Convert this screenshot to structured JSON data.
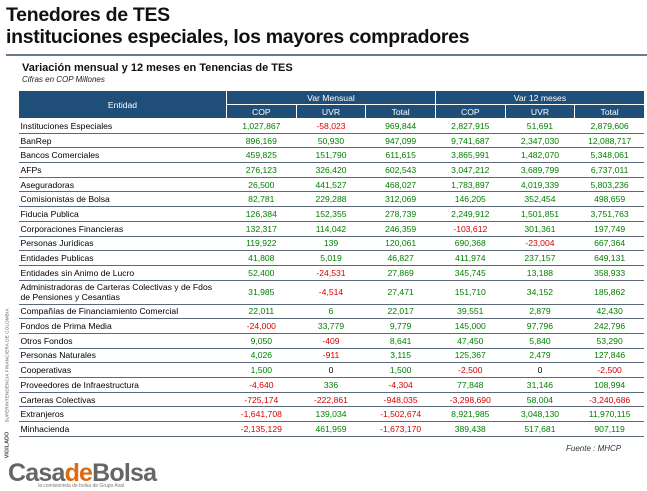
{
  "title": {
    "line1": "Tenedores de TES",
    "line2": "instituciones especiales, los mayores compradores"
  },
  "subtitle": "Variación mensual y 12 meses en Tenencias de TES",
  "units": "Cifras en COP Millones",
  "side_label": "SUPERINTENDENCIA FINANCIERA DE COLOMBIA",
  "side_label2": "VIGILADO",
  "table": {
    "entity_header": "Entidad",
    "group_headers": [
      "Var Mensual",
      "Var 12 meses"
    ],
    "sub_headers": [
      "COP",
      "UVR",
      "Total",
      "COP",
      "UVR",
      "Total"
    ],
    "rows": [
      {
        "entity": "Instituciones Especiales",
        "values": [
          "1,027,867",
          "-58,023",
          "969,844",
          "2,827,915",
          "51,691",
          "2,879,606"
        ]
      },
      {
        "entity": "BanRep",
        "values": [
          "896,169",
          "50,930",
          "947,099",
          "9,741,687",
          "2,347,030",
          "12,088,717"
        ]
      },
      {
        "entity": "Bancos Comerciales",
        "values": [
          "459,825",
          "151,790",
          "611,615",
          "3,865,991",
          "1,482,070",
          "5,348,061"
        ]
      },
      {
        "entity": "AFPs",
        "values": [
          "276,123",
          "326,420",
          "602,543",
          "3,047,212",
          "3,689,799",
          "6,737,011"
        ]
      },
      {
        "entity": "Aseguradoras",
        "values": [
          "26,500",
          "441,527",
          "468,027",
          "1,783,897",
          "4,019,339",
          "5,803,236"
        ]
      },
      {
        "entity": "Comisionistas de Bolsa",
        "values": [
          "82,781",
          "229,288",
          "312,069",
          "146,205",
          "352,454",
          "498,659"
        ]
      },
      {
        "entity": "Fiducia Publica",
        "values": [
          "126,384",
          "152,355",
          "278,739",
          "2,249,912",
          "1,501,851",
          "3,751,763"
        ]
      },
      {
        "entity": "Corporaciones Financieras",
        "values": [
          "132,317",
          "114,042",
          "246,359",
          "-103,612",
          "301,361",
          "197,749"
        ]
      },
      {
        "entity": "Personas Jurídicas",
        "values": [
          "119,922",
          "139",
          "120,061",
          "690,368",
          "-23,004",
          "667,364"
        ]
      },
      {
        "entity": "Entidades Publicas",
        "values": [
          "41,808",
          "5,019",
          "46,827",
          "411,974",
          "237,157",
          "649,131"
        ]
      },
      {
        "entity": "Entidades sin Animo de Lucro",
        "values": [
          "52,400",
          "-24,531",
          "27,869",
          "345,745",
          "13,188",
          "358,933"
        ]
      },
      {
        "entity": "Administradoras de Carteras Colectivas y de Fdos de Pensiones y Cesantias",
        "values": [
          "31,985",
          "-4,514",
          "27,471",
          "151,710",
          "34,152",
          "185,862"
        ],
        "tall": true
      },
      {
        "entity": "Compañías de Financiamiento Comercial",
        "values": [
          "22,011",
          "6",
          "22,017",
          "39,551",
          "2,879",
          "42,430"
        ]
      },
      {
        "entity": "Fondos de Prima Media",
        "values": [
          "-24,000",
          "33,779",
          "9,779",
          "145,000",
          "97,796",
          "242,796"
        ]
      },
      {
        "entity": "Otros Fondos",
        "values": [
          "9,050",
          "-409",
          "8,641",
          "47,450",
          "5,840",
          "53,290"
        ]
      },
      {
        "entity": "Personas Naturales",
        "values": [
          "4,026",
          "-911",
          "3,115",
          "125,367",
          "2,479",
          "127,846"
        ]
      },
      {
        "entity": "Cooperativas",
        "values": [
          "1,500",
          "0",
          "1,500",
          "-2,500",
          "0",
          "-2,500"
        ]
      },
      {
        "entity": "Proveedores de Infraestructura",
        "values": [
          "-4,640",
          "336",
          "-4,304",
          "77,848",
          "31,146",
          "108,994"
        ]
      },
      {
        "entity": "Carteras Colectivas",
        "values": [
          "-725,174",
          "-222,861",
          "-948,035",
          "-3,298,690",
          "58,004",
          "-3,240,686"
        ]
      },
      {
        "entity": "Extranjeros",
        "values": [
          "-1,641,708",
          "139,034",
          "-1,502,674",
          "8,921,985",
          "3,048,130",
          "11,970,115"
        ]
      },
      {
        "entity": "Minhacienda",
        "values": [
          "-2,135,129",
          "461,959",
          "-1,673,170",
          "389,438",
          "517,681",
          "907,119"
        ]
      }
    ]
  },
  "logo": {
    "part1": "Casa",
    "part2": "de",
    "part3": "Bolsa",
    "tagline": "la comisionista de bolsa de Grupo Aval"
  },
  "source": "Fuente : MHCP",
  "colors": {
    "header_bg": "#1f4e79",
    "positive": "#008000",
    "negative": "#d40000",
    "logo_accent": "#e06a10"
  }
}
